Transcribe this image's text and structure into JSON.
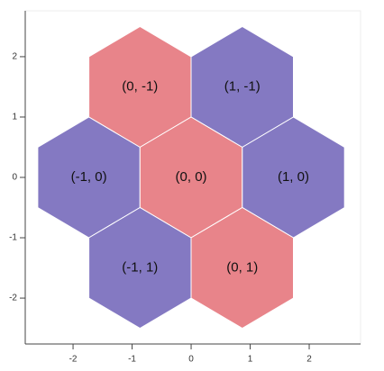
{
  "chart_data": {
    "type": "hex_tile",
    "orientation": "pointytop",
    "size": 1,
    "tiles": [
      {
        "q": 0,
        "r": -1,
        "label": "(0, -1)",
        "color": "#e8848a"
      },
      {
        "q": 1,
        "r": -1,
        "label": "(1, -1)",
        "color": "#8479c2"
      },
      {
        "q": -1,
        "r": 0,
        "label": "(-1, 0)",
        "color": "#8479c2"
      },
      {
        "q": 0,
        "r": 0,
        "label": "(0, 0)",
        "color": "#e8848a"
      },
      {
        "q": 1,
        "r": 0,
        "label": "(1, 0)",
        "color": "#8479c2"
      },
      {
        "q": -1,
        "r": 1,
        "label": "(-1, 1)",
        "color": "#8479c2"
      },
      {
        "q": 0,
        "r": 1,
        "label": "(0, 1)",
        "color": "#e8848a"
      }
    ],
    "xlim": [
      -2.81,
      2.87
    ],
    "xticks": [
      -2,
      -1,
      0,
      1,
      2
    ],
    "ylim": [
      -2.76,
      2.76
    ],
    "yticks": [
      -2,
      -1,
      0,
      1,
      2
    ]
  }
}
